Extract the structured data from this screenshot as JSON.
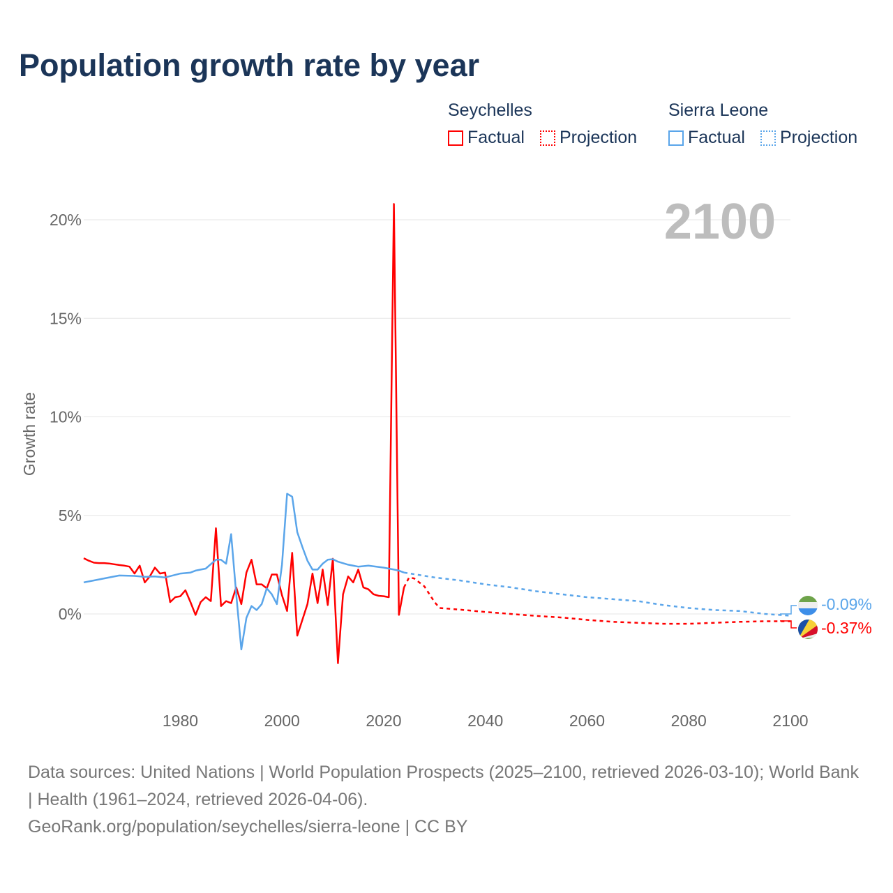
{
  "title": "Population growth rate by year",
  "legend": {
    "groups": [
      {
        "country": "Seychelles",
        "factual": "Factual",
        "projection": "Projection",
        "color": "#ff0000"
      },
      {
        "country": "Sierra Leone",
        "factual": "Factual",
        "projection": "Projection",
        "color": "#5aa5ea"
      }
    ]
  },
  "footer": {
    "sources": "Data sources: United Nations | World Population Prospects (2025–2100, retrieved 2026-03-10); World Bank | Health (1961–2024, retrieved 2026-04-06).",
    "link": "GeoRank.org/population/seychelles/sierra-leone | CC BY"
  },
  "chart_data": {
    "type": "line",
    "title": "Population growth rate by year",
    "year_overlay": "2100",
    "xlabel": "",
    "ylabel": "Growth rate",
    "xlim": [
      1961,
      2100
    ],
    "ylim": [
      -4.5,
      22
    ],
    "xticks": [
      1980,
      2000,
      2020,
      2040,
      2060,
      2080,
      2100
    ],
    "xtick_labels": [
      "1980",
      "2000",
      "2020",
      "2040",
      "2060",
      "2080",
      "2100"
    ],
    "yticks": [
      0,
      5,
      10,
      15,
      20
    ],
    "ytick_labels": [
      "0%",
      "5%",
      "10%",
      "15%",
      "20%"
    ],
    "series": [
      {
        "name": "Seychelles",
        "kind": "factual",
        "color": "#ff0000",
        "points": [
          [
            1961,
            2.83
          ],
          [
            1962,
            2.7
          ],
          [
            1963,
            2.6
          ],
          [
            1964,
            2.58
          ],
          [
            1965,
            2.58
          ],
          [
            1966,
            2.56
          ],
          [
            1967,
            2.52
          ],
          [
            1968,
            2.48
          ],
          [
            1969,
            2.45
          ],
          [
            1970,
            2.4
          ],
          [
            1971,
            2.05
          ],
          [
            1972,
            2.45
          ],
          [
            1973,
            1.6
          ],
          [
            1974,
            1.9
          ],
          [
            1975,
            2.35
          ],
          [
            1976,
            2.05
          ],
          [
            1977,
            2.1
          ],
          [
            1978,
            0.6
          ],
          [
            1979,
            0.85
          ],
          [
            1980,
            0.9
          ],
          [
            1981,
            1.2
          ],
          [
            1982,
            0.6
          ],
          [
            1983,
            -0.05
          ],
          [
            1984,
            0.6
          ],
          [
            1985,
            0.85
          ],
          [
            1986,
            0.65
          ],
          [
            1987,
            4.35
          ],
          [
            1988,
            0.4
          ],
          [
            1989,
            0.65
          ],
          [
            1990,
            0.55
          ],
          [
            1991,
            1.35
          ],
          [
            1992,
            0.5
          ],
          [
            1993,
            2.1
          ],
          [
            1994,
            2.75
          ],
          [
            1995,
            1.5
          ],
          [
            1996,
            1.5
          ],
          [
            1997,
            1.3
          ],
          [
            1998,
            2.0
          ],
          [
            1999,
            2.0
          ],
          [
            2000,
            0.95
          ],
          [
            2001,
            0.15
          ],
          [
            2002,
            3.1
          ],
          [
            2003,
            -1.1
          ],
          [
            2004,
            -0.3
          ],
          [
            2005,
            0.5
          ],
          [
            2006,
            2.05
          ],
          [
            2007,
            0.55
          ],
          [
            2008,
            2.25
          ],
          [
            2009,
            0.45
          ],
          [
            2010,
            2.8
          ],
          [
            2011,
            -2.5
          ],
          [
            2012,
            1.0
          ],
          [
            2013,
            1.9
          ],
          [
            2014,
            1.6
          ],
          [
            2015,
            2.25
          ],
          [
            2016,
            1.35
          ],
          [
            2017,
            1.25
          ],
          [
            2018,
            1.0
          ],
          [
            2019,
            0.92
          ],
          [
            2020,
            0.9
          ],
          [
            2021,
            0.85
          ],
          [
            2022,
            20.8
          ],
          [
            2023,
            -0.05
          ],
          [
            2024,
            1.35
          ]
        ]
      },
      {
        "name": "Seychelles",
        "kind": "projection",
        "color": "#ff0000",
        "points": [
          [
            2024,
            1.35
          ],
          [
            2025,
            1.85
          ],
          [
            2026,
            1.8
          ],
          [
            2027,
            1.6
          ],
          [
            2028,
            1.4
          ],
          [
            2029,
            1.0
          ],
          [
            2030,
            0.6
          ],
          [
            2031,
            0.3
          ],
          [
            2035,
            0.22
          ],
          [
            2040,
            0.1
          ],
          [
            2045,
            0.0
          ],
          [
            2050,
            -0.1
          ],
          [
            2055,
            -0.18
          ],
          [
            2060,
            -0.3
          ],
          [
            2065,
            -0.4
          ],
          [
            2070,
            -0.45
          ],
          [
            2075,
            -0.5
          ],
          [
            2080,
            -0.5
          ],
          [
            2085,
            -0.45
          ],
          [
            2090,
            -0.4
          ],
          [
            2095,
            -0.37
          ],
          [
            2100,
            -0.37
          ]
        ]
      },
      {
        "name": "Sierra Leone",
        "kind": "factual",
        "color": "#5aa5ea",
        "points": [
          [
            1961,
            1.6
          ],
          [
            1963,
            1.7
          ],
          [
            1965,
            1.8
          ],
          [
            1968,
            1.95
          ],
          [
            1971,
            1.93
          ],
          [
            1973,
            1.88
          ],
          [
            1975,
            1.9
          ],
          [
            1977,
            1.85
          ],
          [
            1980,
            2.05
          ],
          [
            1982,
            2.1
          ],
          [
            1983,
            2.2
          ],
          [
            1985,
            2.3
          ],
          [
            1987,
            2.75
          ],
          [
            1988,
            2.75
          ],
          [
            1989,
            2.55
          ],
          [
            1990,
            4.05
          ],
          [
            1991,
            1.0
          ],
          [
            1992,
            -1.8
          ],
          [
            1993,
            -0.2
          ],
          [
            1994,
            0.4
          ],
          [
            1995,
            0.2
          ],
          [
            1996,
            0.5
          ],
          [
            1997,
            1.3
          ],
          [
            1998,
            1.0
          ],
          [
            1999,
            0.5
          ],
          [
            2000,
            2.5
          ],
          [
            2001,
            6.1
          ],
          [
            2002,
            5.95
          ],
          [
            2003,
            4.15
          ],
          [
            2004,
            3.4
          ],
          [
            2005,
            2.7
          ],
          [
            2006,
            2.25
          ],
          [
            2007,
            2.25
          ],
          [
            2008,
            2.55
          ],
          [
            2009,
            2.75
          ],
          [
            2010,
            2.78
          ],
          [
            2011,
            2.65
          ],
          [
            2013,
            2.5
          ],
          [
            2015,
            2.4
          ],
          [
            2017,
            2.45
          ],
          [
            2020,
            2.35
          ],
          [
            2022,
            2.25
          ],
          [
            2023,
            2.2
          ],
          [
            2024,
            2.1
          ]
        ]
      },
      {
        "name": "Sierra Leone",
        "kind": "projection",
        "color": "#5aa5ea",
        "points": [
          [
            2024,
            2.1
          ],
          [
            2030,
            1.85
          ],
          [
            2035,
            1.7
          ],
          [
            2040,
            1.5
          ],
          [
            2045,
            1.35
          ],
          [
            2050,
            1.15
          ],
          [
            2055,
            1.0
          ],
          [
            2060,
            0.85
          ],
          [
            2065,
            0.75
          ],
          [
            2070,
            0.65
          ],
          [
            2075,
            0.45
          ],
          [
            2080,
            0.3
          ],
          [
            2085,
            0.2
          ],
          [
            2090,
            0.15
          ],
          [
            2095,
            0.0
          ],
          [
            2100,
            -0.09
          ]
        ]
      }
    ],
    "end_labels": [
      {
        "country": "Sierra Leone",
        "value": "-0.09%",
        "color": "#5aa5ea"
      },
      {
        "country": "Seychelles",
        "value": "-0.37%",
        "color": "#ff0000"
      }
    ]
  }
}
